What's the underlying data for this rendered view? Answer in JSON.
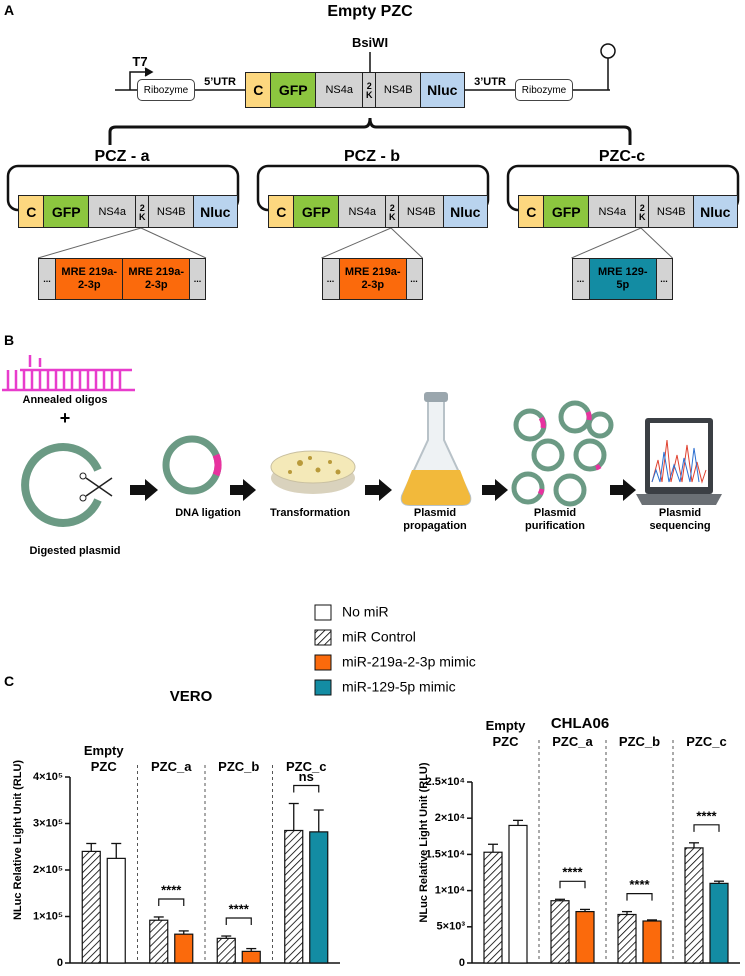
{
  "panel_a": {
    "label": "A",
    "title": "Empty PZC",
    "promoter": "T7",
    "site": "BsiWI",
    "ribozyme_left": "Ribozyme",
    "utr5": "5’UTR",
    "utr3": "3’UTR",
    "ribozyme_right": "Ribozyme",
    "segments": [
      "C",
      "GFP",
      "NS4a",
      "2K",
      "NS4B",
      "Nluc"
    ],
    "flank": "...",
    "constructs": [
      {
        "name": "PCZ - a",
        "inserts": [
          "MRE 219a-2-3p",
          "MRE 219a-2-3p"
        ],
        "insert_color": "#fb6a0c"
      },
      {
        "name": "PCZ - b",
        "inserts": [
          "MRE 219a-2-3p"
        ],
        "insert_color": "#fb6a0c"
      },
      {
        "name": "PZC-c",
        "inserts": [
          "MRE 129-5p"
        ],
        "insert_color": "#138ca3"
      }
    ]
  },
  "panel_b": {
    "label": "B",
    "annealed": "Annealed oligos",
    "plus": "+",
    "digested": "Digested plasmid",
    "steps": [
      "DNA ligation",
      "Transformation",
      "Plasmid propagation",
      "Plasmid purification",
      "Plasmid sequencing"
    ]
  },
  "panel_c": {
    "label": "C"
  },
  "chart_data": [
    {
      "type": "bar",
      "title": "VERO",
      "ylabel": "NLuc Relative Light Unit (RLU)",
      "categories": [
        "Empty PZC",
        "PZC_a",
        "PZC_b",
        "PZC_c"
      ],
      "ylim": [
        0,
        400000
      ],
      "yticks": [
        0,
        {
          "value": 100000,
          "label": "1×10⁵"
        },
        {
          "value": 200000,
          "label": "2×10⁵"
        },
        {
          "value": 300000,
          "label": "3×10⁵"
        },
        {
          "value": 400000,
          "label": "4×10⁵"
        }
      ],
      "series": [
        {
          "name": "No miR",
          "color": "#ffffff",
          "values": [
            225000,
            null,
            null,
            null
          ],
          "errors": [
            32000,
            null,
            null,
            null
          ]
        },
        {
          "name": "miR Control",
          "color": "#000000",
          "hatch": true,
          "values": [
            240000,
            92000,
            53000,
            285000
          ],
          "errors": [
            17000,
            7000,
            5000,
            58000
          ]
        },
        {
          "name": "miR-219a-2-3p mimic",
          "color": "#fb6a0c",
          "values": [
            null,
            62000,
            25000,
            null
          ],
          "errors": [
            null,
            7000,
            6000,
            null
          ]
        },
        {
          "name": "miR-129-5p mimic",
          "color": "#138ca3",
          "values": [
            null,
            null,
            null,
            282000
          ],
          "errors": [
            null,
            null,
            null,
            47000
          ]
        }
      ],
      "significance": [
        null,
        "****",
        "****",
        "ns"
      ]
    },
    {
      "type": "bar",
      "title": "CHLA06",
      "ylabel": "NLuc Relative Light Unit (RLU)",
      "categories": [
        "Empty PZC",
        "PZC_a",
        "PZC_b",
        "PZC_c"
      ],
      "ylim": [
        0,
        25000
      ],
      "yticks": [
        0,
        {
          "value": 5000,
          "label": "5×10³"
        },
        {
          "value": 10000,
          "label": "1×10⁴"
        },
        {
          "value": 15000,
          "label": "1.5×10⁴"
        },
        {
          "value": 20000,
          "label": "2×10⁴"
        },
        {
          "value": 25000,
          "label": "2.5×10⁴"
        }
      ],
      "series": [
        {
          "name": "No miR",
          "color": "#ffffff",
          "values": [
            19000,
            null,
            null,
            null
          ],
          "errors": [
            700,
            null,
            null,
            null
          ]
        },
        {
          "name": "miR Control",
          "color": "#000000",
          "hatch": true,
          "values": [
            15300,
            8600,
            6700,
            15900
          ],
          "errors": [
            1100,
            200,
            400,
            700
          ]
        },
        {
          "name": "miR-219a-2-3p mimic",
          "color": "#fb6a0c",
          "values": [
            null,
            7100,
            5800,
            null
          ],
          "errors": [
            null,
            300,
            150,
            null
          ]
        },
        {
          "name": "miR-129-5p mimic",
          "color": "#138ca3",
          "values": [
            null,
            null,
            null,
            11000
          ],
          "errors": [
            null,
            null,
            null,
            300
          ]
        }
      ],
      "significance": [
        null,
        "****",
        "****",
        "****"
      ]
    }
  ]
}
